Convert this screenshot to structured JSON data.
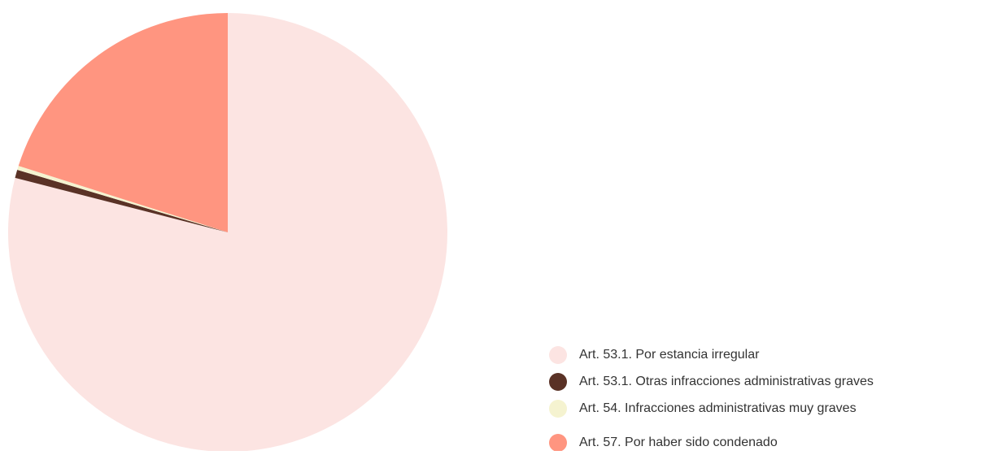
{
  "chart_data": {
    "type": "pie",
    "categories": [
      "Art. 53.1. Por estancia irregular",
      "Art. 53.1. Otras infracciones administrativas graves",
      "Art. 54. Infracciones administrativas muy graves",
      "Art. 57. Por haber sido condenado"
    ],
    "values": [
      79.0,
      0.6,
      0.3,
      20.1
    ],
    "colors": [
      "#fce4e2",
      "#5a3226",
      "#f5f3d0",
      "#ff9580"
    ],
    "legend": "bottom-right"
  }
}
